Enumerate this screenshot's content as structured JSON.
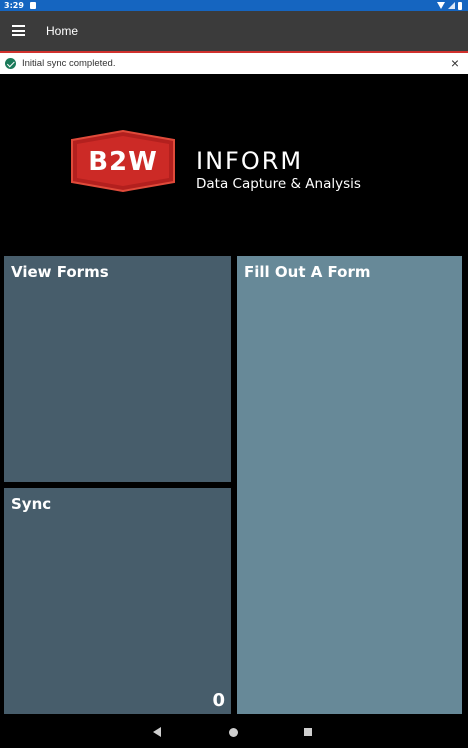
{
  "status_bar": {
    "time": "3:29",
    "color": "#1565c0",
    "icons": [
      "notification-icon",
      "wifi-icon",
      "signal-icon",
      "battery-icon"
    ]
  },
  "app_bar": {
    "title": "Home",
    "menu_icon": "hamburger-menu-icon",
    "background": "#3b3b3b",
    "accent": "#d0312d"
  },
  "banner": {
    "message": "Initial sync completed.",
    "status_icon": "check-circle-icon",
    "close_icon": "close-icon"
  },
  "brand": {
    "logo_text": "B2W",
    "title": "INFORM",
    "subtitle": "Data Capture & Analysis",
    "logo_color": "#d0312d"
  },
  "tiles": {
    "view_forms": {
      "label": "View Forms",
      "color": "#475d6b"
    },
    "sync": {
      "label": "Sync",
      "count": "0",
      "color": "#475d6b"
    },
    "fill_form": {
      "label": "Fill Out A Form",
      "color": "#678998"
    }
  },
  "nav_bar": {
    "icons": [
      "back-icon",
      "home-icon",
      "recent-apps-icon"
    ]
  }
}
